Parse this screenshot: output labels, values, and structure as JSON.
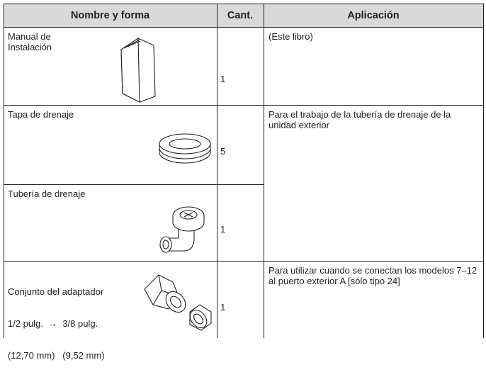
{
  "table": {
    "header": [
      "Nombre y forma",
      "Cant.",
      "Aplicación"
    ],
    "rows": [
      {
        "name": "Manual de Instalación",
        "qty": 1,
        "application": "(Este libro)"
      },
      {
        "name": "Tapa de drenaje",
        "qty": 5,
        "application": "Para el trabajo de la tubería de drenaje de la unidad exterior"
      },
      {
        "name": "Tubería de drenaje",
        "qty": 1
      },
      {
        "name_lines": [
          "Conjunto del adaptador",
          "1/2 pulg.  →  3/8 pulg.",
          "(12,70 mm)   (9,52 mm)"
        ],
        "qty": 1,
        "application": "Para utilizar cuando se conectan los modelos 7–12 al puerto exterior A [sólo tipo 24]"
      }
    ]
  }
}
